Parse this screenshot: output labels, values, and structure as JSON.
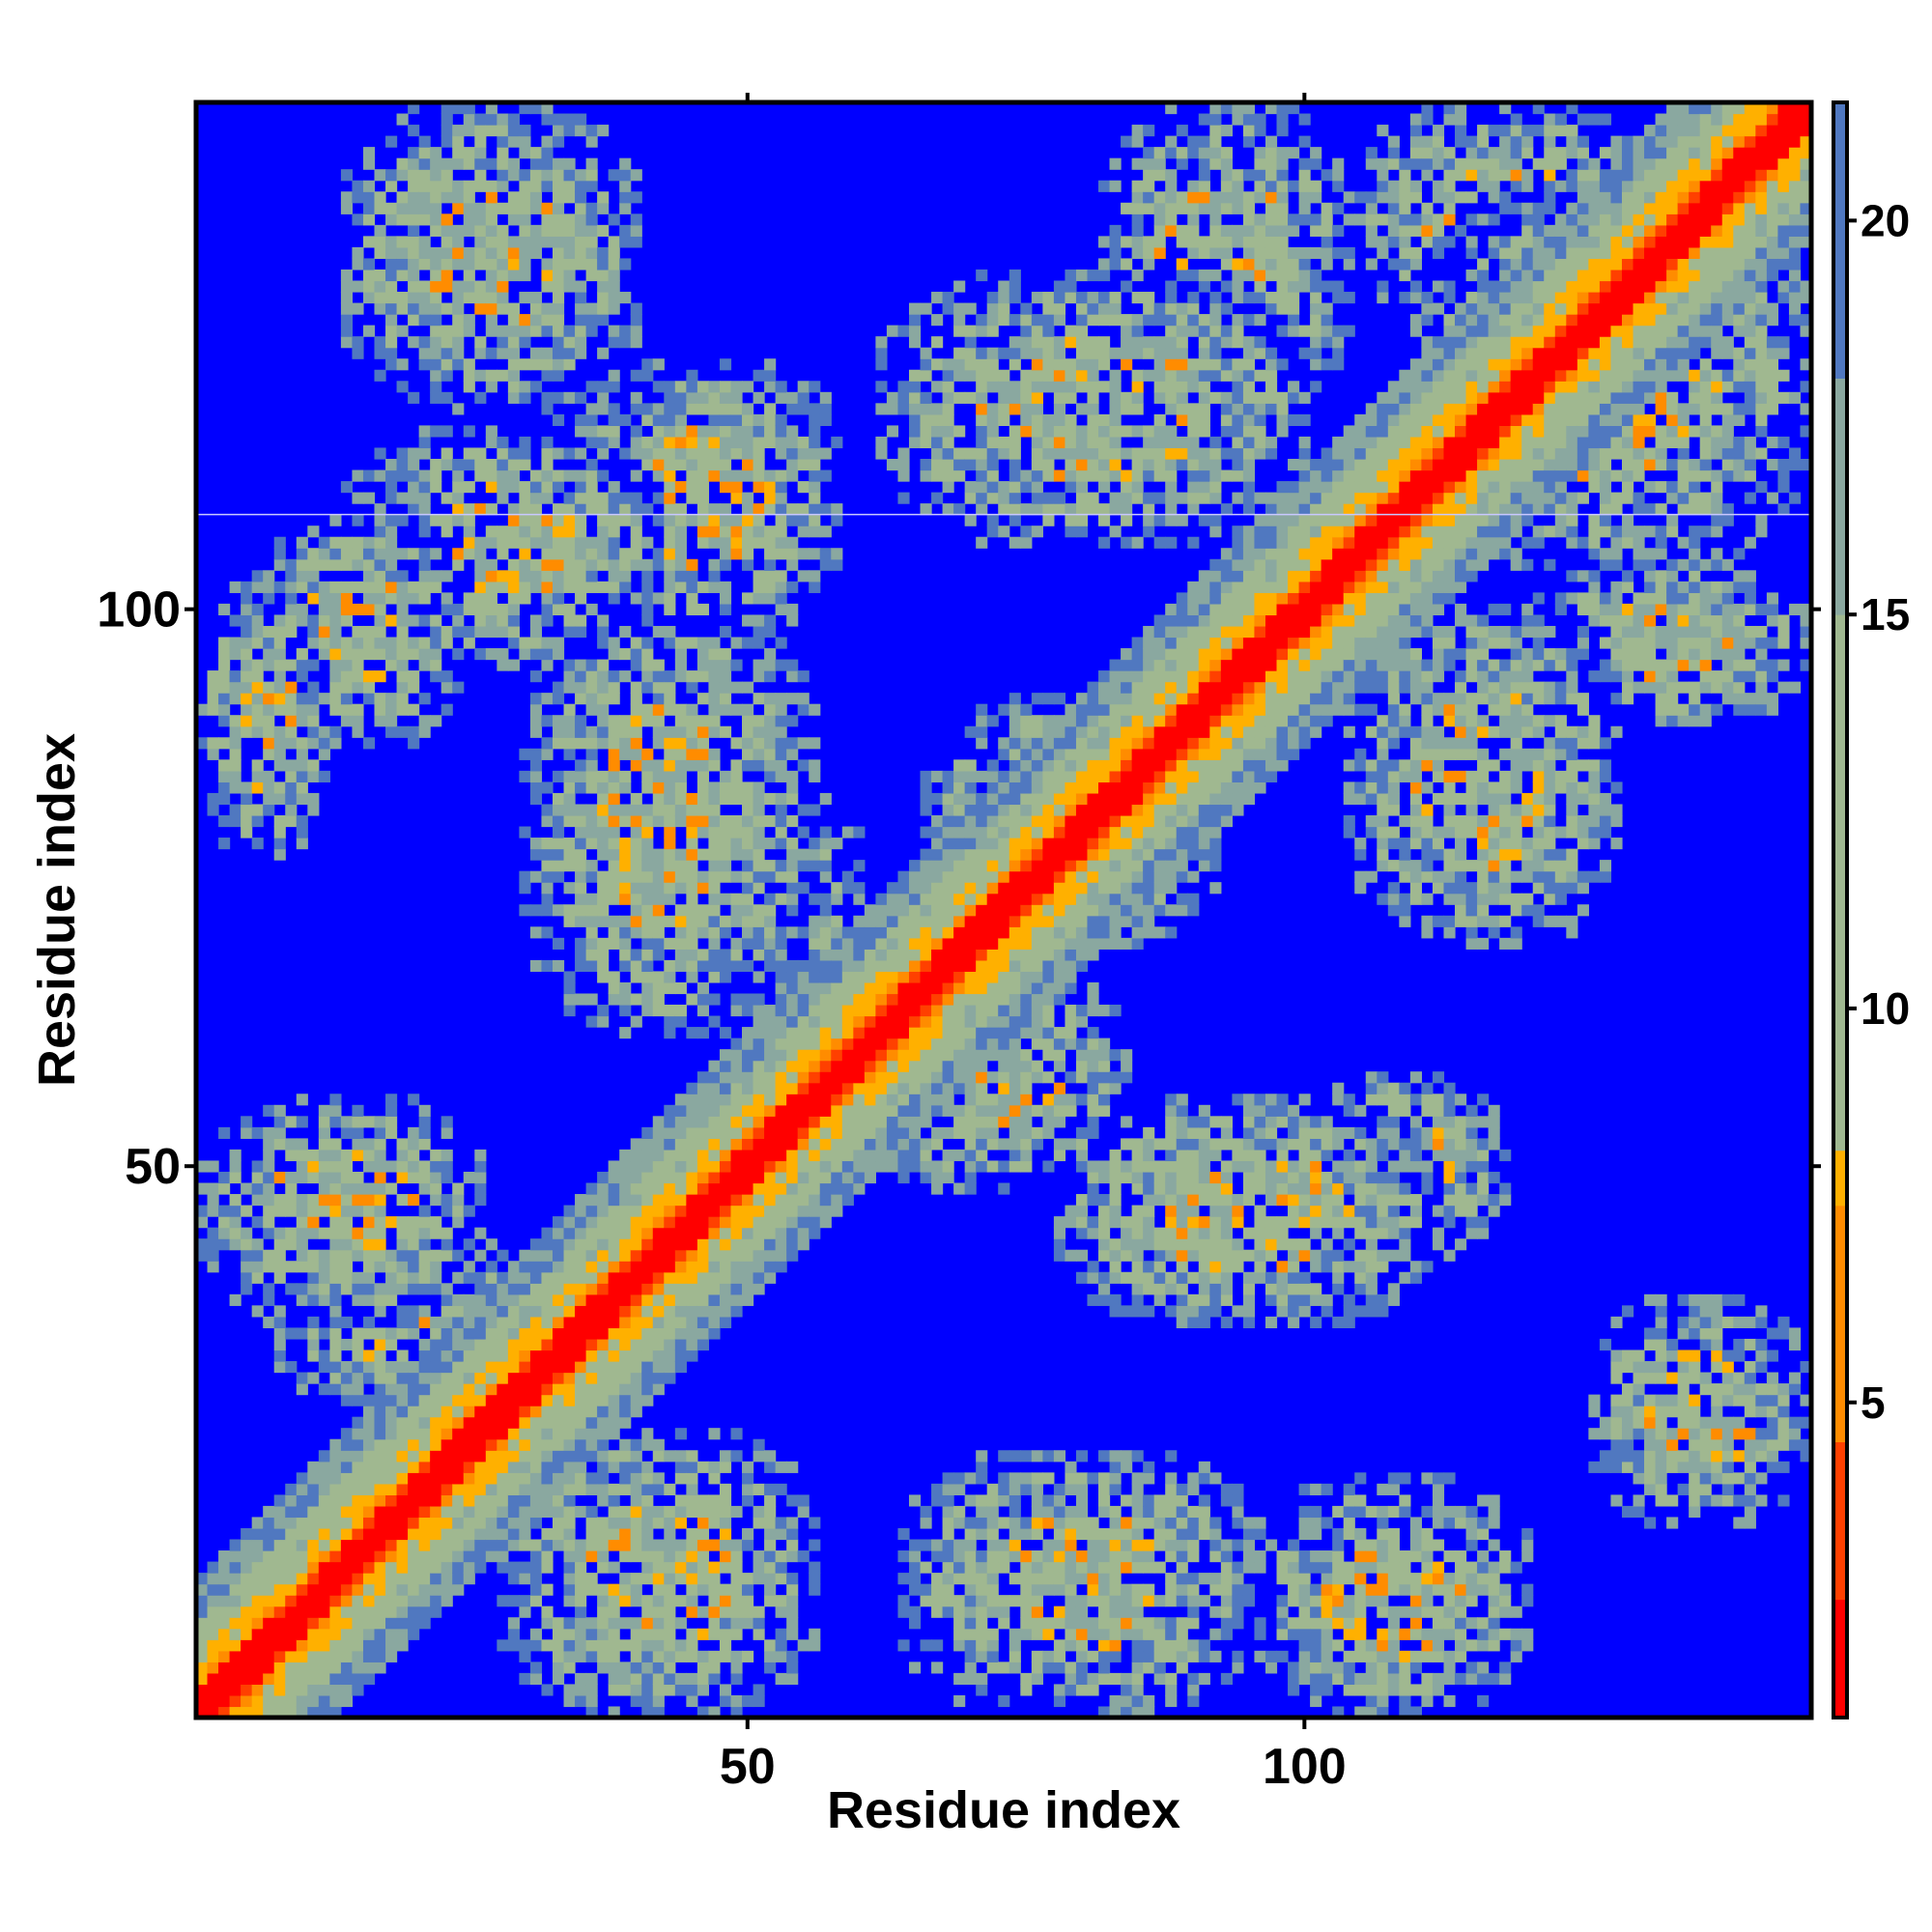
{
  "chart_data": {
    "type": "heatmap",
    "title": "",
    "xlabel": "Residue index",
    "ylabel": "Residue index",
    "n_residues": 145,
    "xlim": [
      1,
      145
    ],
    "ylim": [
      1,
      145
    ],
    "x_ticks": [
      50,
      100
    ],
    "y_ticks": [
      50,
      100
    ],
    "x_tick_labels": [
      "50",
      "100"
    ],
    "y_tick_labels": [
      "50",
      "100"
    ],
    "grid": false,
    "legend": "colorbar-right",
    "colorbar": {
      "ticks": [
        5,
        10,
        15,
        20
      ],
      "tick_labels": [
        "5",
        "10",
        "15",
        "20"
      ],
      "range": [
        1,
        21.5
      ]
    },
    "colors": {
      "background": "#0000ff",
      "contact_1": "#ff0000",
      "contact_2": "#ff4000",
      "contact_3": "#ff8c00",
      "contact_4": "#ffb000",
      "mid_1": "#a0b890",
      "mid_2": "#8aa8a0",
      "far": "#5078c0"
    },
    "diagonal": {
      "contact_band_halfwidth": 3,
      "halo_halfwidth": 12
    },
    "contact_blocks": [
      {
        "x": [
          1,
          12
        ],
        "y": [
          78,
          102
        ]
      },
      {
        "x": [
          6,
          24
        ],
        "y": [
          88,
          108
        ]
      },
      {
        "x": [
          14,
          42
        ],
        "y": [
          95,
          116
        ]
      },
      {
        "x": [
          32,
          58
        ],
        "y": [
          98,
          122
        ]
      },
      {
        "x": [
          14,
          40
        ],
        "y": [
          118,
          145
        ]
      },
      {
        "x": [
          30,
          58
        ],
        "y": [
          108,
          122
        ]
      },
      {
        "x": [
          1,
          26
        ],
        "y": [
          36,
          56
        ]
      },
      {
        "x": [
          8,
          32
        ],
        "y": [
          28,
          44
        ]
      },
      {
        "x": [
          30,
          56
        ],
        "y": [
          62,
          100
        ]
      },
      {
        "x": [
          40,
          60
        ],
        "y": [
          66,
          84
        ]
      },
      {
        "x": [
          60,
          84
        ],
        "y": [
          48,
          68
        ]
      },
      {
        "x": [
          66,
          92
        ],
        "y": [
          70,
          92
        ]
      },
      {
        "x": [
          62,
          100
        ],
        "y": [
          106,
          130
        ]
      },
      {
        "x": [
          82,
          104
        ],
        "y": [
          118,
          145
        ]
      },
      {
        "x": [
          104,
          128
        ],
        "y": [
          70,
          100
        ]
      },
      {
        "x": [
          120,
          145
        ],
        "y": [
          90,
          104
        ]
      },
      {
        "x": [
          78,
          112
        ],
        "y": [
          36,
          56
        ]
      },
      {
        "x": [
          98,
          118
        ],
        "y": [
          42,
          58
        ]
      },
      {
        "x": [
          28,
          56
        ],
        "y": [
          1,
          26
        ]
      },
      {
        "x": [
          64,
          96
        ],
        "y": [
          1,
          24
        ]
      },
      {
        "x": [
          96,
          120
        ],
        "y": [
          1,
          22
        ]
      },
      {
        "x": [
          126,
          145
        ],
        "y": [
          18,
          38
        ]
      },
      {
        "x": [
          110,
          145
        ],
        "y": [
          104,
          138
        ]
      },
      {
        "x": [
          104,
          132
        ],
        "y": [
          126,
          145
        ]
      }
    ]
  }
}
